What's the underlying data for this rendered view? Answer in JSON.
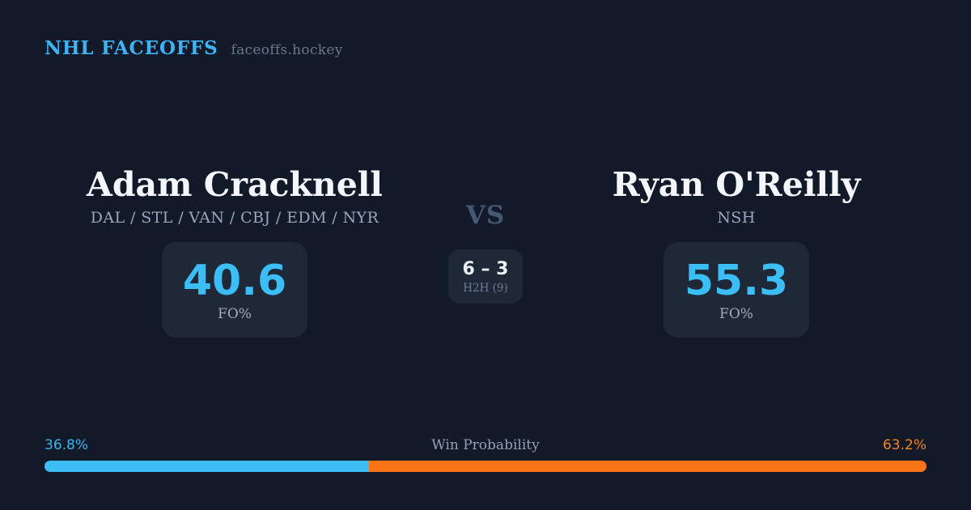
{
  "header": {
    "brand": "NHL FACEOFFS",
    "site": "faceoffs.hockey"
  },
  "players": {
    "left": {
      "name": "Adam Cracknell",
      "teams": "DAL / STL / VAN / CBJ / EDM / NYR",
      "fo_pct": "40.6",
      "fo_label": "FO%"
    },
    "right": {
      "name": "Ryan O'Reilly",
      "teams": "NSH",
      "fo_pct": "55.3",
      "fo_label": "FO%"
    }
  },
  "versus": {
    "label": "VS",
    "h2h_score": "6 – 3",
    "h2h_label": "H2H (9)"
  },
  "win_probability": {
    "title": "Win Probability",
    "left_pct": "36.8%",
    "right_pct": "63.2%",
    "left_value": 36.8,
    "right_value": 63.2
  },
  "colors": {
    "background": "#121a2a",
    "card": "#1e2836",
    "accent_blue": "#3bbdf6",
    "accent_orange": "#f97316",
    "brand_blue": "#3fb2f2",
    "text_primary": "#f3f6fa",
    "text_muted": "#9aa6b9",
    "vs_gray": "#46586f"
  }
}
